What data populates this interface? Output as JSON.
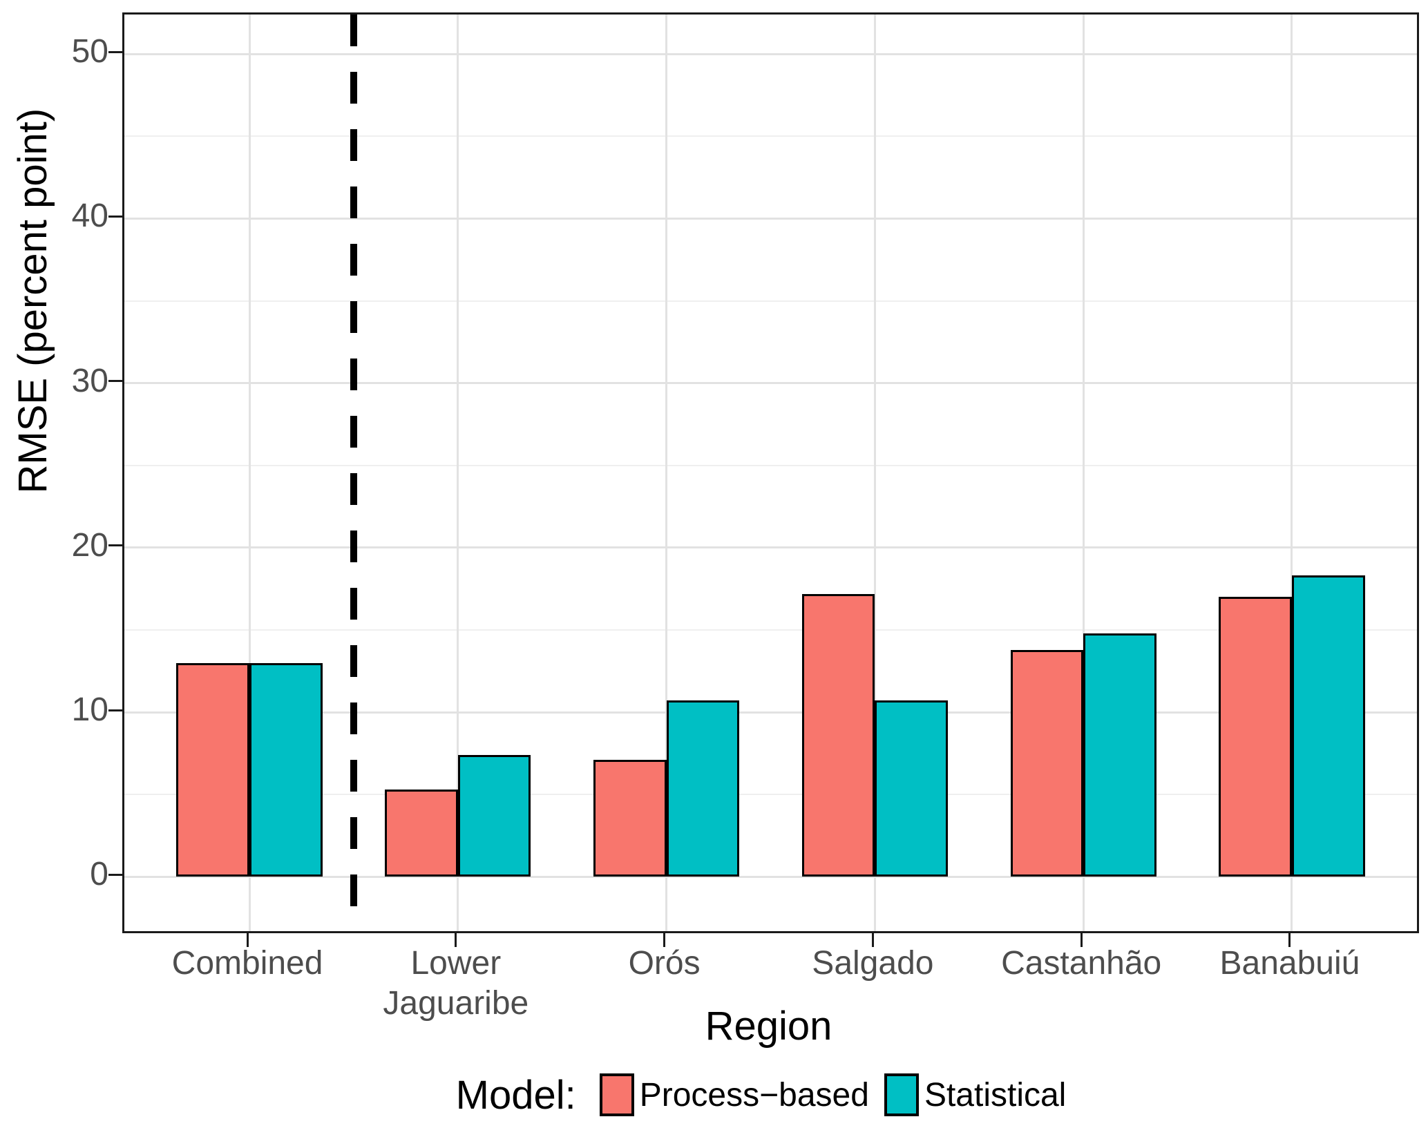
{
  "chart_data": {
    "type": "bar",
    "title": "",
    "xlabel": "Region",
    "ylabel": "RMSE (percent point)",
    "categories": [
      "Combined",
      "Lower Jaguaribe",
      "Orós",
      "Salgado",
      "Castanhão",
      "Banabuiú"
    ],
    "category_display_lines": [
      [
        "Combined"
      ],
      [
        "Lower",
        "Jaguaribe"
      ],
      [
        "Orós"
      ],
      [
        "Salgado"
      ],
      [
        "Castanhão"
      ],
      [
        "Banabuiú"
      ]
    ],
    "series": [
      {
        "name": "Process−based",
        "key": "process-based",
        "color": "#F8766D",
        "values": [
          13.0,
          5.3,
          7.1,
          17.2,
          13.8,
          17.0
        ]
      },
      {
        "name": "Statistical",
        "key": "statistical",
        "color": "#00BFC4",
        "values": [
          13.0,
          7.4,
          10.7,
          10.7,
          14.8,
          18.3
        ]
      }
    ],
    "y_axis": {
      "major_ticks": [
        0,
        10,
        20,
        30,
        40,
        50
      ],
      "tick_labels": [
        "0",
        "10",
        "20",
        "30",
        "40",
        "50"
      ],
      "minor_ticks": [
        5,
        15,
        25,
        35,
        45
      ]
    },
    "ylim": [
      -3.3,
      52.4
    ],
    "xlim": [
      0.4,
      6.6
    ],
    "bar_width_units": 0.35,
    "separator_line": {
      "x": 1.5,
      "style": "dashed",
      "color": "#000000"
    },
    "grid": "horizontal major+minor, vertical major at group centers",
    "legend_position": "bottom"
  },
  "legend": {
    "title": "Model:",
    "items": [
      {
        "label": "Process−based",
        "color": "#F8766D"
      },
      {
        "label": "Statistical",
        "color": "#00BFC4"
      }
    ]
  }
}
